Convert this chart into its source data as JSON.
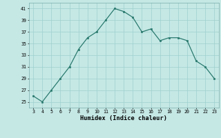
{
  "x": [
    3,
    4,
    5,
    6,
    7,
    8,
    9,
    10,
    11,
    12,
    13,
    14,
    15,
    16,
    17,
    18,
    19,
    20,
    21,
    22,
    23
  ],
  "y": [
    26,
    25,
    27,
    29,
    31,
    34,
    36,
    37,
    39,
    41,
    40.5,
    39.5,
    37,
    37.5,
    35.5,
    36,
    36,
    35.5,
    32,
    31,
    29
  ],
  "xlabel": "Humidex (Indice chaleur)",
  "ylim": [
    24,
    42
  ],
  "xlim": [
    2.5,
    23.5
  ],
  "yticks": [
    25,
    27,
    29,
    31,
    33,
    35,
    37,
    39,
    41
  ],
  "xticks": [
    3,
    4,
    5,
    6,
    7,
    8,
    9,
    10,
    11,
    12,
    13,
    14,
    15,
    16,
    17,
    18,
    19,
    20,
    21,
    22,
    23
  ],
  "line_color": "#2a7a6e",
  "bg_color": "#c5e8e5",
  "grid_color": "#9dcfcc"
}
